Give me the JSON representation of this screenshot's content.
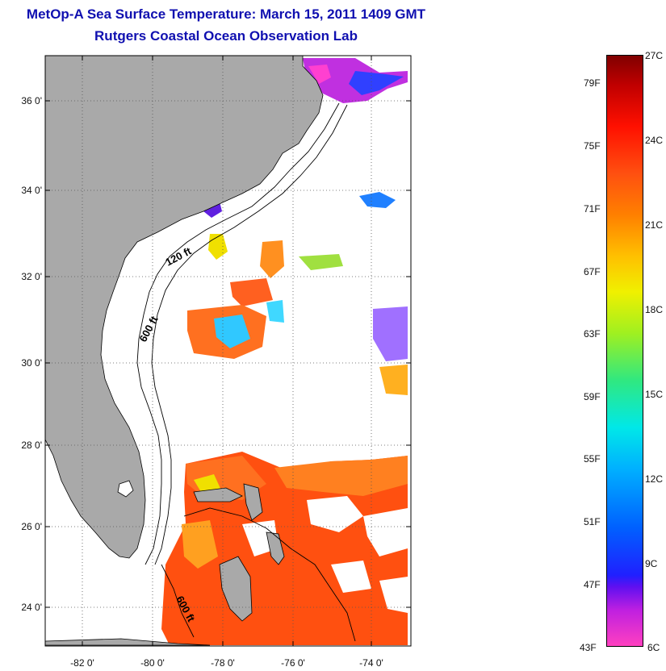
{
  "title": "MetOp-A Sea Surface Temperature:  March 15, 2011 1409 GMT",
  "subtitle": "Rutgers Coastal Ocean Observation Lab",
  "map": {
    "lat_range": [
      23,
      37.1
    ],
    "lon_range": [
      -83,
      -72.9
    ],
    "lat_ticks": [
      "24 0'",
      "26 0'",
      "28 0'",
      "30 0'",
      "32 0'",
      "34 0'",
      "36 0'"
    ],
    "lon_ticks": [
      "-82 0'",
      "-80 0'",
      "-78 0'",
      "-76 0'",
      "-74 0'"
    ],
    "contour_labels": [
      "120 ft",
      "600 ft",
      "600 ft"
    ],
    "land_color": "#a9a9a9",
    "no_data_color": "#ffffff"
  },
  "colorbar": {
    "fahrenheit_ticks": [
      "79F",
      "75F",
      "71F",
      "67F",
      "63F",
      "59F",
      "55F",
      "51F",
      "47F",
      "43F"
    ],
    "celsius_ticks": [
      "27C",
      "24C",
      "21C",
      "18C",
      "15C",
      "12C",
      "9C",
      "6C"
    ],
    "range_c": [
      6,
      27
    ],
    "range_f": [
      43,
      80.6
    ]
  }
}
